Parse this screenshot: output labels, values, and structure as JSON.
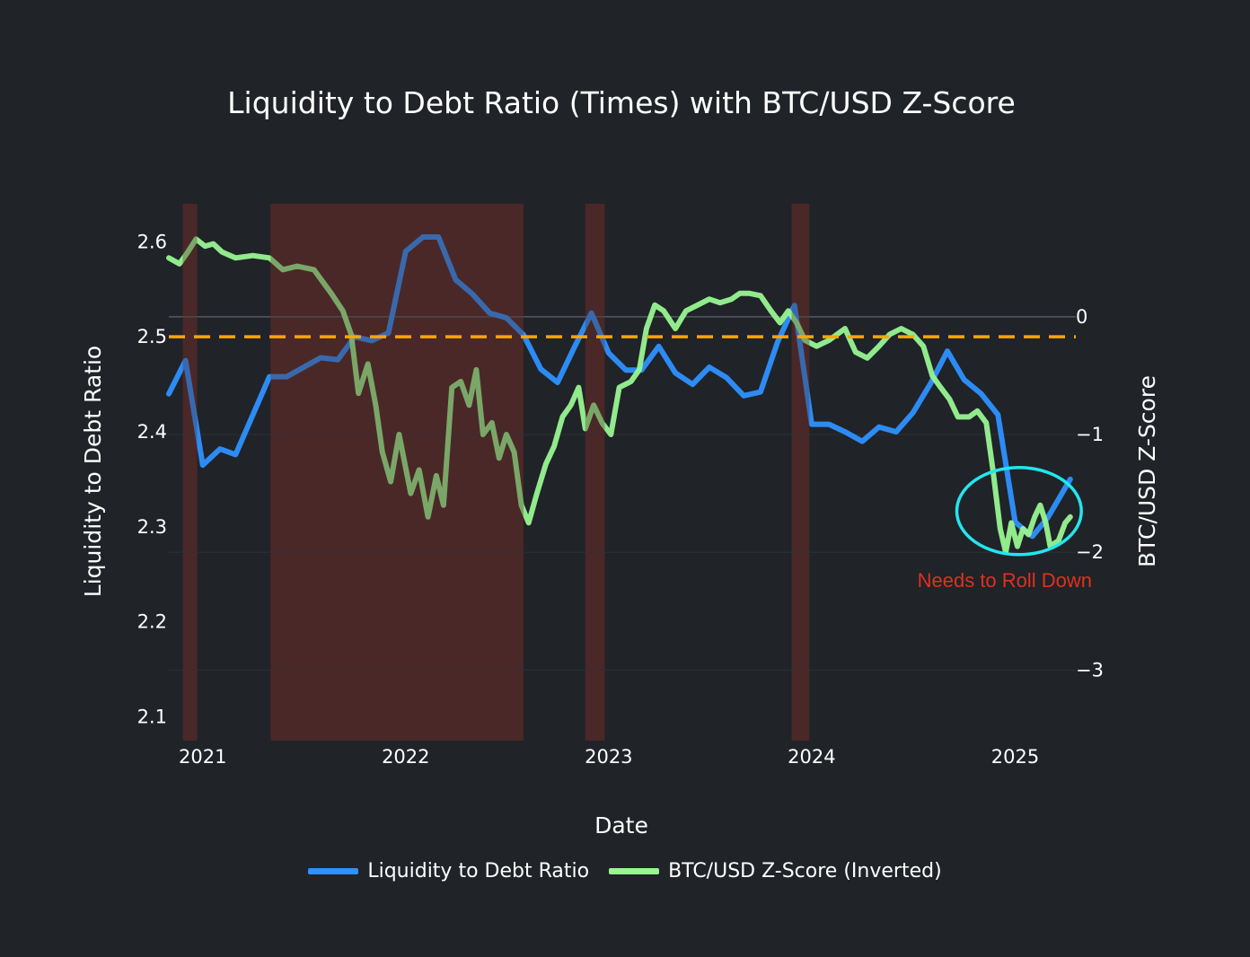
{
  "chart_data": {
    "type": "line",
    "title": "Liquidity to Debt Ratio (Times) with BTC/USD Z-Score",
    "xlabel": "Date",
    "ylabel": "Liquidity to Debt Ratio",
    "y2label": "BTC/USD Z-Score",
    "x_ticks": [
      "2021",
      "2022",
      "2023",
      "2024",
      "2025"
    ],
    "y_ticks": [
      "2.1",
      "2.2",
      "2.3",
      "2.4",
      "2.5",
      "2.6"
    ],
    "y2_ticks": [
      "0",
      "−1",
      "−2",
      "−3"
    ],
    "xlim": [
      "2020-11-01",
      "2025-04-20"
    ],
    "ylim": [
      2.075,
      2.64
    ],
    "y2lim": [
      -3.6,
      0.96
    ],
    "y2_inverted_display": false,
    "reference_line": {
      "axis": "y",
      "value": 2.5,
      "style": "dashed",
      "color": "#FFA500"
    },
    "zero_line": {
      "axis": "y2",
      "value": 0
    },
    "shaded_ranges": [
      [
        "2020-11-26",
        "2020-12-22"
      ],
      [
        "2021-05-03",
        "2022-08-01"
      ],
      [
        "2022-11-20",
        "2022-12-25"
      ],
      [
        "2023-11-26",
        "2023-12-28"
      ]
    ],
    "shade_color": "#4a2829",
    "annotation": {
      "text": "Needs to Roll Down",
      "color": "#e0301e",
      "circle_color": "#22e6ee",
      "center": [
        "2025-01-08",
        -1.65
      ],
      "radius": [
        "2025-04-30",
        -1.28
      ]
    },
    "series": [
      {
        "name": "Liquidity to Debt Ratio",
        "axis": "y",
        "color": "#2e91ff",
        "points": [
          [
            "2020-11-01",
            2.44
          ],
          [
            "2020-12-01",
            2.475
          ],
          [
            "2021-01-01",
            2.365
          ],
          [
            "2021-02-01",
            2.382
          ],
          [
            "2021-03-01",
            2.376
          ],
          [
            "2021-05-01",
            2.458
          ],
          [
            "2021-06-01",
            2.458
          ],
          [
            "2021-08-01",
            2.478
          ],
          [
            "2021-09-01",
            2.476
          ],
          [
            "2021-10-01",
            2.5
          ],
          [
            "2021-11-01",
            2.496
          ],
          [
            "2021-12-01",
            2.504
          ],
          [
            "2022-01-01",
            2.59
          ],
          [
            "2022-02-01",
            2.605
          ],
          [
            "2022-03-01",
            2.605
          ],
          [
            "2022-04-01",
            2.56
          ],
          [
            "2022-05-01",
            2.545
          ],
          [
            "2022-06-01",
            2.525
          ],
          [
            "2022-07-01",
            2.52
          ],
          [
            "2022-08-01",
            2.502
          ],
          [
            "2022-09-01",
            2.466
          ],
          [
            "2022-10-01",
            2.452
          ],
          [
            "2022-11-01",
            2.49
          ],
          [
            "2022-12-01",
            2.525
          ],
          [
            "2023-01-01",
            2.483
          ],
          [
            "2023-02-01",
            2.465
          ],
          [
            "2023-03-01",
            2.465
          ],
          [
            "2023-04-01",
            2.49
          ],
          [
            "2023-05-01",
            2.462
          ],
          [
            "2023-06-01",
            2.45
          ],
          [
            "2023-07-01",
            2.468
          ],
          [
            "2023-08-01",
            2.457
          ],
          [
            "2023-09-01",
            2.438
          ],
          [
            "2023-10-01",
            2.442
          ],
          [
            "2023-11-01",
            2.495
          ],
          [
            "2023-12-01",
            2.533
          ],
          [
            "2024-01-01",
            2.408
          ],
          [
            "2024-02-01",
            2.408
          ],
          [
            "2024-03-01",
            2.4
          ],
          [
            "2024-04-01",
            2.39
          ],
          [
            "2024-05-01",
            2.405
          ],
          [
            "2024-06-01",
            2.4
          ],
          [
            "2024-07-01",
            2.42
          ],
          [
            "2024-08-01",
            2.45
          ],
          [
            "2024-09-01",
            2.485
          ],
          [
            "2024-10-01",
            2.455
          ],
          [
            "2024-11-01",
            2.44
          ],
          [
            "2024-12-01",
            2.418
          ],
          [
            "2025-01-01",
            2.305
          ],
          [
            "2025-02-01",
            2.29
          ],
          [
            "2025-03-01",
            2.31
          ],
          [
            "2025-04-10",
            2.35
          ]
        ]
      },
      {
        "name": "BTC/USD Z-Score (Inverted)",
        "axis": "y2",
        "color": "#98f590",
        "points": [
          [
            "2020-11-01",
            0.5
          ],
          [
            "2020-11-20",
            0.45
          ],
          [
            "2020-12-05",
            0.55
          ],
          [
            "2020-12-20",
            0.66
          ],
          [
            "2021-01-05",
            0.6
          ],
          [
            "2021-01-20",
            0.62
          ],
          [
            "2021-02-05",
            0.55
          ],
          [
            "2021-03-01",
            0.5
          ],
          [
            "2021-04-01",
            0.52
          ],
          [
            "2021-05-01",
            0.5
          ],
          [
            "2021-05-25",
            0.4
          ],
          [
            "2021-06-20",
            0.43
          ],
          [
            "2021-07-20",
            0.4
          ],
          [
            "2021-08-20",
            0.2
          ],
          [
            "2021-09-10",
            0.05
          ],
          [
            "2021-09-25",
            -0.15
          ],
          [
            "2021-10-08",
            -0.65
          ],
          [
            "2021-10-25",
            -0.4
          ],
          [
            "2021-11-08",
            -0.75
          ],
          [
            "2021-11-20",
            -1.15
          ],
          [
            "2021-12-05",
            -1.4
          ],
          [
            "2021-12-20",
            -1.0
          ],
          [
            "2022-01-10",
            -1.5
          ],
          [
            "2022-01-25",
            -1.3
          ],
          [
            "2022-02-10",
            -1.7
          ],
          [
            "2022-02-25",
            -1.35
          ],
          [
            "2022-03-10",
            -1.6
          ],
          [
            "2022-03-25",
            -0.6
          ],
          [
            "2022-04-10",
            -0.55
          ],
          [
            "2022-04-25",
            -0.75
          ],
          [
            "2022-05-08",
            -0.45
          ],
          [
            "2022-05-20",
            -1.0
          ],
          [
            "2022-06-05",
            -0.9
          ],
          [
            "2022-06-18",
            -1.2
          ],
          [
            "2022-07-01",
            -1.0
          ],
          [
            "2022-07-15",
            -1.15
          ],
          [
            "2022-07-28",
            -1.6
          ],
          [
            "2022-08-10",
            -1.75
          ],
          [
            "2022-08-25",
            -1.5
          ],
          [
            "2022-09-10",
            -1.25
          ],
          [
            "2022-09-25",
            -1.1
          ],
          [
            "2022-10-10",
            -0.85
          ],
          [
            "2022-10-25",
            -0.75
          ],
          [
            "2022-11-08",
            -0.6
          ],
          [
            "2022-11-20",
            -0.95
          ],
          [
            "2022-12-05",
            -0.75
          ],
          [
            "2022-12-20",
            -0.9
          ],
          [
            "2023-01-05",
            -1.0
          ],
          [
            "2023-01-20",
            -0.6
          ],
          [
            "2023-02-10",
            -0.55
          ],
          [
            "2023-02-25",
            -0.45
          ],
          [
            "2023-03-10",
            -0.1
          ],
          [
            "2023-03-25",
            0.1
          ],
          [
            "2023-04-10",
            0.05
          ],
          [
            "2023-05-01",
            -0.1
          ],
          [
            "2023-05-20",
            0.05
          ],
          [
            "2023-06-10",
            0.1
          ],
          [
            "2023-07-01",
            0.15
          ],
          [
            "2023-07-20",
            0.12
          ],
          [
            "2023-08-10",
            0.15
          ],
          [
            "2023-08-25",
            0.2
          ],
          [
            "2023-09-10",
            0.2
          ],
          [
            "2023-10-01",
            0.18
          ],
          [
            "2023-10-20",
            0.05
          ],
          [
            "2023-11-05",
            -0.05
          ],
          [
            "2023-11-20",
            0.05
          ],
          [
            "2023-12-05",
            -0.05
          ],
          [
            "2023-12-20",
            -0.2
          ],
          [
            "2024-01-10",
            -0.25
          ],
          [
            "2024-02-01",
            -0.2
          ],
          [
            "2024-03-01",
            -0.1
          ],
          [
            "2024-03-20",
            -0.3
          ],
          [
            "2024-04-10",
            -0.35
          ],
          [
            "2024-05-01",
            -0.25
          ],
          [
            "2024-05-20",
            -0.15
          ],
          [
            "2024-06-10",
            -0.1
          ],
          [
            "2024-07-01",
            -0.15
          ],
          [
            "2024-07-20",
            -0.25
          ],
          [
            "2024-08-05",
            -0.5
          ],
          [
            "2024-08-20",
            -0.6
          ],
          [
            "2024-09-05",
            -0.7
          ],
          [
            "2024-09-20",
            -0.85
          ],
          [
            "2024-10-10",
            -0.85
          ],
          [
            "2024-10-25",
            -0.8
          ],
          [
            "2024-11-10",
            -0.9
          ],
          [
            "2024-11-22",
            -1.3
          ],
          [
            "2024-12-05",
            -1.8
          ],
          [
            "2024-12-15",
            -2.0
          ],
          [
            "2024-12-25",
            -1.75
          ],
          [
            "2025-01-05",
            -1.95
          ],
          [
            "2025-01-15",
            -1.8
          ],
          [
            "2025-01-25",
            -1.85
          ],
          [
            "2025-02-05",
            -1.7
          ],
          [
            "2025-02-15",
            -1.6
          ],
          [
            "2025-02-25",
            -1.75
          ],
          [
            "2025-03-05",
            -1.95
          ],
          [
            "2025-03-20",
            -1.9
          ],
          [
            "2025-04-01",
            -1.75
          ],
          [
            "2025-04-10",
            -1.7
          ]
        ]
      }
    ],
    "legend": [
      "Liquidity to Debt Ratio",
      "BTC/USD Z-Score (Inverted)"
    ],
    "legend_position": "bottom-center"
  }
}
